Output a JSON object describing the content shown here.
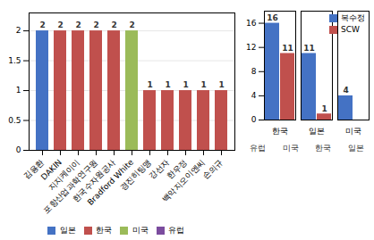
{
  "chart_data": [
    {
      "type": "bar",
      "categories": [
        "김용환",
        "DAKIN",
        "지지케이이",
        "포항산업과학연구원",
        "한국수자원공사",
        "Bradford White",
        "경진히팅맹",
        "강선자",
        "한우정",
        "백악지오이엔씨",
        "손의규"
      ],
      "series": [
        {
          "name": "일본",
          "color": "#4472C4",
          "values": [
            2,
            null,
            null,
            null,
            null,
            null,
            null,
            null,
            null,
            null,
            null
          ]
        },
        {
          "name": "한국",
          "color": "#C0504D",
          "values": [
            null,
            2,
            2,
            2,
            2,
            null,
            1,
            1,
            1,
            1,
            1
          ]
        },
        {
          "name": "미국",
          "color": "#9BBB59",
          "values": [
            null,
            null,
            null,
            null,
            null,
            2,
            null,
            null,
            null,
            null,
            null
          ]
        },
        {
          "name": "유럽",
          "color": "#7B4C9E",
          "values": [
            null,
            null,
            null,
            null,
            null,
            null,
            null,
            null,
            null,
            null,
            null
          ]
        }
      ],
      "stacked": true,
      "ylim": [
        0,
        2.3
      ],
      "yticks": [
        0,
        0.5,
        1,
        1.5,
        2
      ],
      "grid": true,
      "data_labels": true,
      "legend": "bottom",
      "annotations": [
        "유럽",
        "미국",
        "한국",
        "일본"
      ]
    },
    {
      "type": "bar",
      "categories": [
        "한국",
        "일본",
        "미국"
      ],
      "series": [
        {
          "name": "복수정",
          "color": "#4472C4",
          "values": [
            16,
            11,
            4
          ]
        },
        {
          "name": "SCW",
          "color": "#C0504D",
          "values": [
            11,
            1,
            0
          ],
          "value_labels": [
            "11",
            "1",
            null
          ]
        }
      ],
      "ylim": [
        0,
        18
      ],
      "yticks": [
        0,
        4,
        8,
        12,
        16
      ],
      "data_labels": true,
      "legend": "upper right"
    }
  ]
}
